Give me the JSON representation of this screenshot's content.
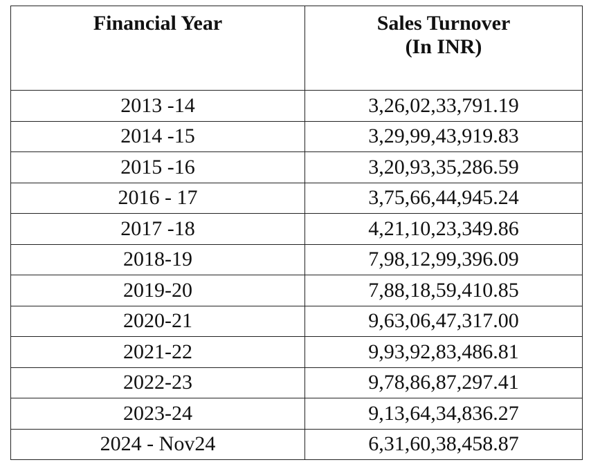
{
  "table": {
    "header": {
      "year": "Financial Year",
      "turnover": [
        "Sales Turnover",
        "(In INR)"
      ]
    },
    "rows": [
      [
        "2013 -14",
        "3,26,02,33,791.19"
      ],
      [
        "2014 -15",
        "3,29,99,43,919.83"
      ],
      [
        "2015 -16",
        "3,20,93,35,286.59"
      ],
      [
        "2016 - 17",
        "3,75,66,44,945.24"
      ],
      [
        "2017 -18",
        "4,21,10,23,349.86"
      ],
      [
        "2018-19",
        "7,98,12,99,396.09"
      ],
      [
        "2019-20",
        "7,88,18,59,410.85"
      ],
      [
        "2020-21",
        "9,63,06,47,317.00"
      ],
      [
        "2021-22",
        "9,93,92,83,486.81"
      ],
      [
        "2022-23",
        "9,78,86,87,297.41"
      ],
      [
        "2023-24",
        "9,13,64,34,836.27"
      ],
      [
        "2024 - Nov24",
        "6,31,60,38,458.87"
      ]
    ]
  }
}
